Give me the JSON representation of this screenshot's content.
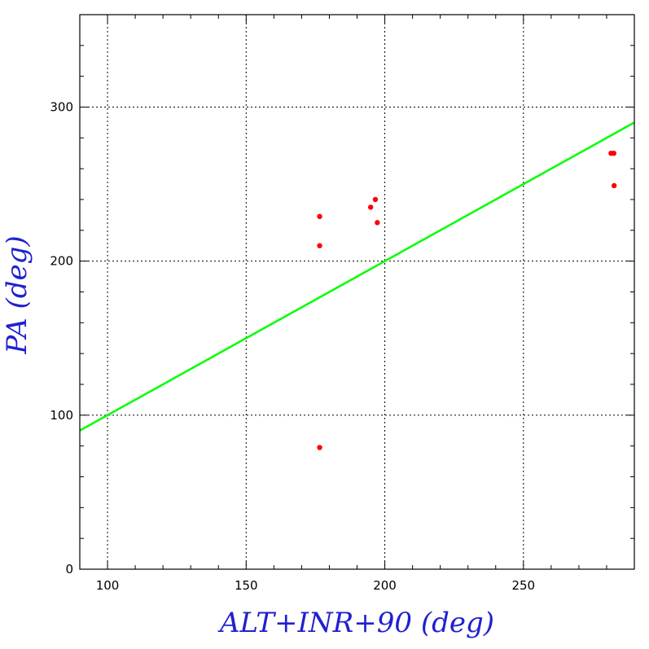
{
  "chart_data": {
    "type": "scatter",
    "title": "",
    "xlabel": "ALT+INR+90 (deg)",
    "ylabel": "PA (deg)",
    "xlim": [
      90,
      290
    ],
    "ylim": [
      0,
      360
    ],
    "xticks": [
      100,
      150,
      200,
      250
    ],
    "yticks": [
      0,
      100,
      200,
      300
    ],
    "xtick_labels": [
      "100",
      "150",
      "200",
      "250"
    ],
    "ytick_labels": [
      "0",
      "100",
      "200",
      "300"
    ],
    "x_minor_step": 10,
    "y_minor_step": 20,
    "grid": true,
    "points": [
      {
        "x": 176.5,
        "y": 229
      },
      {
        "x": 176.5,
        "y": 210
      },
      {
        "x": 176.5,
        "y": 79
      },
      {
        "x": 194.9,
        "y": 235
      },
      {
        "x": 196.6,
        "y": 240
      },
      {
        "x": 197.3,
        "y": 225
      },
      {
        "x": 281.6,
        "y": 270
      },
      {
        "x": 282.6,
        "y": 270
      },
      {
        "x": 282.7,
        "y": 249
      }
    ],
    "line": {
      "x": [
        90,
        290
      ],
      "y": [
        90,
        290
      ]
    },
    "colors": {
      "points": "#ff0000",
      "line": "#00ff00",
      "axis_titles": "#2020d0",
      "grid": "#000000"
    }
  }
}
